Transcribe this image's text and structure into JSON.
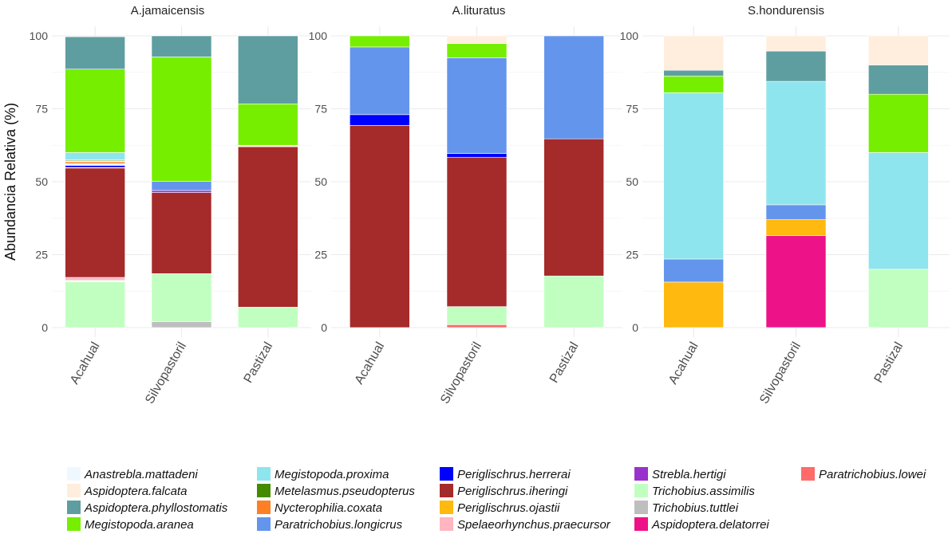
{
  "chart_data": {
    "type": "bar",
    "stacked": true,
    "ylabel": "Abundancia Relativa (%)",
    "xlabel": "",
    "ylim": [
      0,
      100
    ],
    "yticks": [
      "0",
      "25",
      "50",
      "75",
      "100"
    ],
    "grid": true,
    "legend_position": "bottom",
    "categories": [
      "Acahual",
      "Silvopastoril",
      "Pastizal"
    ],
    "species": [
      {
        "name": "Anastrebla.mattadeni",
        "color": "#f0f8ff"
      },
      {
        "name": "Aspidoptera.falcata",
        "color": "#ffeedd"
      },
      {
        "name": "Aspidoptera.phyllostomatis",
        "color": "#5f9ea0"
      },
      {
        "name": "Megistopoda.aranea",
        "color": "#76ee00"
      },
      {
        "name": "Megistopoda.proxima",
        "color": "#8ee5ee"
      },
      {
        "name": "Metelasmus.pseudopterus",
        "color": "#458b00"
      },
      {
        "name": "Nycterophilia.coxata",
        "color": "#ff7f24"
      },
      {
        "name": "Paratrichobius.longicrus",
        "color": "#6495ed"
      },
      {
        "name": "Periglischrus.herrerai",
        "color": "#0000ff"
      },
      {
        "name": "Periglischrus.iheringi",
        "color": "#a52a2a"
      },
      {
        "name": "Periglischrus.ojastii",
        "color": "#ffb90f"
      },
      {
        "name": "Spelaeorhynchus.praecursor",
        "color": "#ffb6c1"
      },
      {
        "name": "Strebla.hertigi",
        "color": "#9932cc"
      },
      {
        "name": "Trichobius.assimilis",
        "color": "#c1ffc1"
      },
      {
        "name": "Trichobius.tuttlei",
        "color": "#bebebe"
      },
      {
        "name": "Aspidoptera.delatorrei",
        "color": "#ee1289"
      },
      {
        "name": "Paratrichobius.lowei",
        "color": "#ff6a6a"
      }
    ],
    "panels": [
      {
        "title": "A.jamaicensis",
        "bars": [
          {
            "category": "Acahual",
            "segments": [
              {
                "species": "Trichobius.assimilis",
                "value": 15.7
              },
              {
                "species": "Anastrebla.mattadeni",
                "value": 0.5
              },
              {
                "species": "Spelaeorhynchus.praecursor",
                "value": 1.0
              },
              {
                "species": "Periglischrus.iheringi",
                "value": 37.5
              },
              {
                "species": "Paratrichobius.lowei",
                "value": 0.2
              },
              {
                "species": "Periglischrus.herrerai",
                "value": 0.7
              },
              {
                "species": "Anastrebla.mattadeni",
                "value": 0.6
              },
              {
                "species": "Nycterophilia.coxata",
                "value": 0.6
              },
              {
                "species": "Aspidoptera.falcata",
                "value": 0.4
              },
              {
                "species": "Metelasmus.pseudopterus",
                "value": 0.3
              },
              {
                "species": "Megistopoda.proxima",
                "value": 2.5
              },
              {
                "species": "Megistopoda.aranea",
                "value": 28.6
              },
              {
                "species": "Aspidoptera.phyllostomatis",
                "value": 11.1
              }
            ]
          },
          {
            "category": "Silvopastoril",
            "segments": [
              {
                "species": "Trichobius.tuttlei",
                "value": 2.0
              },
              {
                "species": "Trichobius.assimilis",
                "value": 16.5
              },
              {
                "species": "Periglischrus.iheringi",
                "value": 27.8
              },
              {
                "species": "Strebla.hertigi",
                "value": 0.7
              },
              {
                "species": "Paratrichobius.longicrus",
                "value": 3.1
              },
              {
                "species": "Megistopoda.aranea",
                "value": 42.7
              },
              {
                "species": "Aspidoptera.phyllostomatis",
                "value": 7.2
              }
            ]
          },
          {
            "category": "Pastizal",
            "segments": [
              {
                "species": "Trichobius.assimilis",
                "value": 7.0
              },
              {
                "species": "Periglischrus.iheringi",
                "value": 55.0
              },
              {
                "species": "Aspidoptera.falcata",
                "value": 0.5
              },
              {
                "species": "Megistopoda.aranea",
                "value": 14.2
              },
              {
                "species": "Aspidoptera.phyllostomatis",
                "value": 23.3
              }
            ]
          }
        ]
      },
      {
        "title": "A.lituratus",
        "bars": [
          {
            "category": "Acahual",
            "segments": [
              {
                "species": "Periglischrus.iheringi",
                "value": 69.3
              },
              {
                "species": "Periglischrus.herrerai",
                "value": 3.7
              },
              {
                "species": "Paratrichobius.longicrus",
                "value": 23.2
              },
              {
                "species": "Megistopoda.aranea",
                "value": 3.8
              }
            ]
          },
          {
            "category": "Silvopastoril",
            "segments": [
              {
                "species": "Paratrichobius.lowei",
                "value": 1.0
              },
              {
                "species": "Trichobius.assimilis",
                "value": 6.2
              },
              {
                "species": "Periglischrus.iheringi",
                "value": 51.2
              },
              {
                "species": "Periglischrus.herrerai",
                "value": 1.3
              },
              {
                "species": "Paratrichobius.longicrus",
                "value": 32.8
              },
              {
                "species": "Megistopoda.aranea",
                "value": 4.9
              },
              {
                "species": "Aspidoptera.falcata",
                "value": 2.6
              }
            ]
          },
          {
            "category": "Pastizal",
            "segments": [
              {
                "species": "Trichobius.assimilis",
                "value": 17.7
              },
              {
                "species": "Periglischrus.iheringi",
                "value": 47.0
              },
              {
                "species": "Paratrichobius.longicrus",
                "value": 35.3
              }
            ]
          }
        ]
      },
      {
        "title": "S.hondurensis",
        "bars": [
          {
            "category": "Acahual",
            "segments": [
              {
                "species": "Periglischrus.ojastii",
                "value": 15.6
              },
              {
                "species": "Paratrichobius.longicrus",
                "value": 7.9
              },
              {
                "species": "Megistopoda.proxima",
                "value": 57.0
              },
              {
                "species": "Megistopoda.aranea",
                "value": 5.7
              },
              {
                "species": "Aspidoptera.phyllostomatis",
                "value": 2.0
              },
              {
                "species": "Aspidoptera.falcata",
                "value": 11.8
              }
            ]
          },
          {
            "category": "Silvopastoril",
            "segments": [
              {
                "species": "Aspidoptera.delatorrei",
                "value": 31.5
              },
              {
                "species": "Periglischrus.ojastii",
                "value": 5.5
              },
              {
                "species": "Paratrichobius.longicrus",
                "value": 5.1
              },
              {
                "species": "Megistopoda.proxima",
                "value": 42.3
              },
              {
                "species": "Aspidoptera.phyllostomatis",
                "value": 10.4
              },
              {
                "species": "Aspidoptera.falcata",
                "value": 5.2
              }
            ]
          },
          {
            "category": "Pastizal",
            "segments": [
              {
                "species": "Trichobius.assimilis",
                "value": 20.0
              },
              {
                "species": "Megistopoda.proxima",
                "value": 40.0
              },
              {
                "species": "Megistopoda.aranea",
                "value": 20.0
              },
              {
                "species": "Aspidoptera.phyllostomatis",
                "value": 10.0
              },
              {
                "species": "Aspidoptera.falcata",
                "value": 10.0
              }
            ]
          }
        ]
      }
    ],
    "legend": {
      "columns": [
        [
          "Anastrebla.mattadeni",
          "Aspidoptera.falcata",
          "Aspidoptera.phyllostomatis",
          "Megistopoda.aranea"
        ],
        [
          "Megistopoda.proxima",
          "Metelasmus.pseudopterus",
          "Nycterophilia.coxata",
          "Paratrichobius.longicrus"
        ],
        [
          "Periglischrus.herrerai",
          "Periglischrus.iheringi",
          "Periglischrus.ojastii",
          "Spelaeorhynchus.praecursor"
        ],
        [
          "Strebla.hertigi",
          "Trichobius.assimilis",
          "Trichobius.tuttlei",
          "Aspidoptera.delatorrei"
        ],
        [
          "Paratrichobius.lowei"
        ]
      ]
    }
  }
}
